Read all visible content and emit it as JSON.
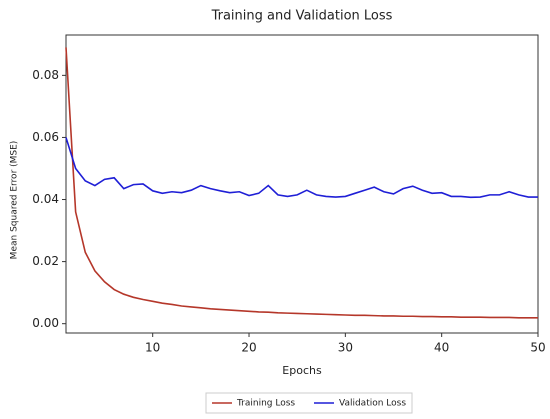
{
  "chart_data": {
    "type": "line",
    "title": "Training and Validation Loss",
    "x_label": "Epochs",
    "y_label": "Mean Squared Error (MSE)",
    "x": [
      1,
      2,
      3,
      4,
      5,
      6,
      7,
      8,
      9,
      10,
      11,
      12,
      13,
      14,
      15,
      16,
      17,
      18,
      19,
      20,
      21,
      22,
      23,
      24,
      25,
      26,
      27,
      28,
      29,
      30,
      31,
      32,
      33,
      34,
      35,
      36,
      37,
      38,
      39,
      40,
      41,
      42,
      43,
      44,
      45,
      46,
      47,
      48,
      49,
      50
    ],
    "series": [
      {
        "name": "Training Loss",
        "color": "#b5372a",
        "values": [
          0.089,
          0.036,
          0.023,
          0.017,
          0.0135,
          0.011,
          0.0095,
          0.0085,
          0.0078,
          0.0072,
          0.0066,
          0.0062,
          0.0057,
          0.0054,
          0.0051,
          0.0048,
          0.0046,
          0.0044,
          0.0042,
          0.004,
          0.0038,
          0.0037,
          0.0035,
          0.0034,
          0.0033,
          0.0032,
          0.0031,
          0.003,
          0.0029,
          0.0028,
          0.0027,
          0.0027,
          0.0026,
          0.0025,
          0.0025,
          0.0024,
          0.0024,
          0.0023,
          0.0023,
          0.0022,
          0.0022,
          0.0021,
          0.0021,
          0.0021,
          0.002,
          0.002,
          0.002,
          0.0019,
          0.0019,
          0.0019
        ]
      },
      {
        "name": "Validation Loss",
        "color": "#1f1fd6",
        "values": [
          0.06,
          0.05,
          0.046,
          0.0445,
          0.0465,
          0.047,
          0.0435,
          0.0448,
          0.045,
          0.0428,
          0.042,
          0.0425,
          0.0422,
          0.043,
          0.0445,
          0.0435,
          0.0428,
          0.0422,
          0.0425,
          0.0413,
          0.042,
          0.0445,
          0.0415,
          0.041,
          0.0415,
          0.043,
          0.0415,
          0.041,
          0.0408,
          0.041,
          0.042,
          0.043,
          0.044,
          0.0425,
          0.0418,
          0.0435,
          0.0443,
          0.043,
          0.042,
          0.0422,
          0.041,
          0.041,
          0.0407,
          0.0408,
          0.0415,
          0.0415,
          0.0425,
          0.0415,
          0.0408,
          0.0408
        ]
      }
    ],
    "xlim": [
      1,
      50
    ],
    "xticks": [
      10,
      20,
      30,
      40,
      50
    ],
    "ylim": [
      -0.003,
      0.093
    ],
    "yticks": [
      {
        "value": 0,
        "label": "0.00"
      },
      {
        "value": 0.02,
        "label": "0.02"
      },
      {
        "value": 0.04,
        "label": "0.04"
      },
      {
        "value": 0.06,
        "label": "0.06"
      },
      {
        "value": 0.08,
        "label": "0.08"
      }
    ],
    "grid": false,
    "legend": "bottom"
  }
}
